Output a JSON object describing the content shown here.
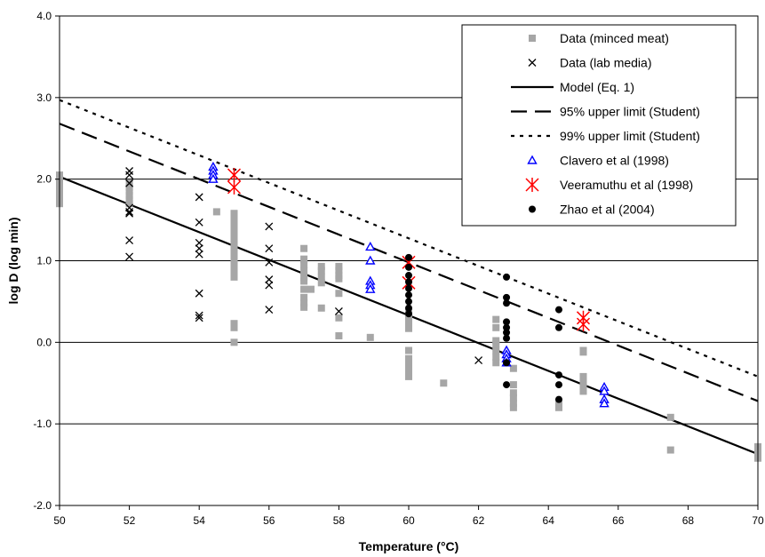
{
  "chart_data": {
    "type": "scatter",
    "xlabel": "Temperature (°C)",
    "ylabel": "log D (log min)",
    "xlim": [
      50,
      70
    ],
    "ylim": [
      -2.0,
      4.0
    ],
    "xticks": [
      "50",
      "52",
      "54",
      "56",
      "58",
      "60",
      "62",
      "64",
      "66",
      "68",
      "70"
    ],
    "yticks": [
      "-2.0",
      "-1.0",
      "0.0",
      "1.0",
      "2.0",
      "3.0",
      "4.0"
    ],
    "grid": "horizontal",
    "legend_position": "top-right",
    "series": [
      {
        "name": "Data (minced meat)",
        "kind": "points",
        "marker": "square",
        "color": "#a6a6a6",
        "points": [
          [
            50,
            2.05
          ],
          [
            50,
            2.0
          ],
          [
            50,
            1.95
          ],
          [
            50,
            1.9
          ],
          [
            50,
            1.85
          ],
          [
            50,
            1.8
          ],
          [
            50,
            1.75
          ],
          [
            50,
            1.7
          ],
          [
            52,
            1.95
          ],
          [
            52,
            1.9
          ],
          [
            52,
            1.85
          ],
          [
            52,
            1.8
          ],
          [
            52,
            1.75
          ],
          [
            52,
            1.7
          ],
          [
            54.5,
            1.6
          ],
          [
            55,
            1.58
          ],
          [
            55,
            1.52
          ],
          [
            55,
            1.45
          ],
          [
            55,
            1.4
          ],
          [
            55,
            1.35
          ],
          [
            55,
            1.3
          ],
          [
            55,
            1.25
          ],
          [
            55,
            1.2
          ],
          [
            55,
            1.15
          ],
          [
            55,
            1.1
          ],
          [
            55,
            1.05
          ],
          [
            55,
            1.0
          ],
          [
            55,
            0.95
          ],
          [
            55,
            0.9
          ],
          [
            55,
            0.85
          ],
          [
            55,
            0.8
          ],
          [
            55,
            0.23
          ],
          [
            55,
            0.18
          ],
          [
            55,
            0.0
          ],
          [
            57,
            1.15
          ],
          [
            57,
            1.02
          ],
          [
            57,
            0.95
          ],
          [
            57,
            0.88
          ],
          [
            57,
            0.8
          ],
          [
            57,
            0.75
          ],
          [
            57,
            0.65
          ],
          [
            57,
            0.55
          ],
          [
            57,
            0.48
          ],
          [
            57,
            0.43
          ],
          [
            57.2,
            0.65
          ],
          [
            57.5,
            0.93
          ],
          [
            57.5,
            0.88
          ],
          [
            57.5,
            0.8
          ],
          [
            57.5,
            0.73
          ],
          [
            57.5,
            0.42
          ],
          [
            58,
            0.93
          ],
          [
            58,
            0.88
          ],
          [
            58,
            0.82
          ],
          [
            58,
            0.78
          ],
          [
            58,
            0.6
          ],
          [
            58,
            0.3
          ],
          [
            58,
            0.08
          ],
          [
            58.9,
            0.06
          ],
          [
            60,
            0.38
          ],
          [
            60,
            0.3
          ],
          [
            60,
            0.22
          ],
          [
            60,
            0.17
          ],
          [
            60,
            -0.1
          ],
          [
            60,
            -0.2
          ],
          [
            60,
            -0.28
          ],
          [
            60,
            -0.35
          ],
          [
            60,
            -0.42
          ],
          [
            61,
            -0.5
          ],
          [
            62.5,
            0.28
          ],
          [
            62.5,
            0.18
          ],
          [
            62.5,
            0.02
          ],
          [
            62.5,
            -0.02
          ],
          [
            62.5,
            -0.1
          ],
          [
            62.5,
            -0.18
          ],
          [
            62.5,
            -0.25
          ],
          [
            63,
            -0.32
          ],
          [
            63,
            -0.52
          ],
          [
            63,
            -0.62
          ],
          [
            63,
            -0.68
          ],
          [
            63,
            -0.75
          ],
          [
            63,
            -0.8
          ],
          [
            64.3,
            -0.75
          ],
          [
            64.3,
            -0.8
          ],
          [
            65,
            -0.12
          ],
          [
            65,
            -0.1
          ],
          [
            65,
            -0.42
          ],
          [
            65,
            -0.48
          ],
          [
            65,
            -0.55
          ],
          [
            65,
            -0.6
          ],
          [
            67.5,
            -0.92
          ],
          [
            67.5,
            -1.32
          ],
          [
            70,
            -1.28
          ],
          [
            70,
            -1.35
          ],
          [
            70,
            -1.42
          ]
        ]
      },
      {
        "name": "Data (lab media)",
        "kind": "points",
        "marker": "x",
        "color": "#000000",
        "points": [
          [
            52,
            2.1
          ],
          [
            52,
            2.05
          ],
          [
            52,
            1.95
          ],
          [
            52,
            1.65
          ],
          [
            52,
            1.6
          ],
          [
            52,
            1.58
          ],
          [
            52,
            1.25
          ],
          [
            52,
            1.05
          ],
          [
            54,
            1.78
          ],
          [
            54,
            1.47
          ],
          [
            54,
            1.22
          ],
          [
            54,
            1.15
          ],
          [
            54,
            1.08
          ],
          [
            54,
            0.6
          ],
          [
            54,
            0.33
          ],
          [
            54,
            0.3
          ],
          [
            56,
            1.42
          ],
          [
            56,
            1.15
          ],
          [
            56,
            0.98
          ],
          [
            56,
            0.77
          ],
          [
            56,
            0.7
          ],
          [
            56,
            0.4
          ],
          [
            58,
            0.38
          ],
          [
            62,
            -0.22
          ]
        ]
      },
      {
        "name": "Model (Eq. 1)",
        "kind": "line",
        "dash": "solid",
        "color": "#000000",
        "points": [
          [
            50,
            2.03
          ],
          [
            70,
            -1.37
          ]
        ]
      },
      {
        "name": "95% upper limit (Student)",
        "kind": "line",
        "dash": "long-dash",
        "color": "#000000",
        "points": [
          [
            50,
            2.68
          ],
          [
            70,
            -0.72
          ]
        ]
      },
      {
        "name": "99% upper limit (Student)",
        "kind": "line",
        "dash": "dotted",
        "color": "#000000",
        "points": [
          [
            50,
            2.97
          ],
          [
            70,
            -0.42
          ]
        ]
      },
      {
        "name": "Clavero et al (1998)",
        "kind": "points",
        "marker": "triangle",
        "color": "#0000ff",
        "points": [
          [
            54.4,
            2.15
          ],
          [
            54.4,
            2.1
          ],
          [
            54.4,
            2.05
          ],
          [
            54.4,
            2.0
          ],
          [
            58.9,
            1.17
          ],
          [
            58.9,
            1.0
          ],
          [
            58.9,
            0.75
          ],
          [
            58.9,
            0.7
          ],
          [
            58.9,
            0.65
          ],
          [
            62.8,
            -0.1
          ],
          [
            62.8,
            -0.15
          ],
          [
            62.8,
            -0.2
          ],
          [
            62.8,
            -0.25
          ],
          [
            65.6,
            -0.55
          ],
          [
            65.6,
            -0.6
          ],
          [
            65.6,
            -0.7
          ],
          [
            65.6,
            -0.75
          ]
        ]
      },
      {
        "name": "Veeramuthu et al (1998)",
        "kind": "points",
        "marker": "asterisk",
        "color": "#ff0000",
        "points": [
          [
            55,
            2.05
          ],
          [
            55,
            1.9
          ],
          [
            60,
            0.98
          ],
          [
            60,
            0.73
          ],
          [
            65,
            0.3
          ],
          [
            65,
            0.22
          ]
        ]
      },
      {
        "name": "Zhao et al (2004)",
        "kind": "points",
        "marker": "circle",
        "color": "#000000",
        "points": [
          [
            60,
            1.04
          ],
          [
            60,
            0.92
          ],
          [
            60,
            0.82
          ],
          [
            60,
            0.74
          ],
          [
            60,
            0.66
          ],
          [
            60,
            0.58
          ],
          [
            60,
            0.5
          ],
          [
            60,
            0.42
          ],
          [
            60,
            0.35
          ],
          [
            62.8,
            0.8
          ],
          [
            62.8,
            0.55
          ],
          [
            62.8,
            0.48
          ],
          [
            62.8,
            0.25
          ],
          [
            62.8,
            0.18
          ],
          [
            62.8,
            0.12
          ],
          [
            62.8,
            0.05
          ],
          [
            62.8,
            -0.25
          ],
          [
            62.8,
            -0.52
          ],
          [
            64.3,
            0.4
          ],
          [
            64.3,
            0.18
          ],
          [
            64.3,
            -0.4
          ],
          [
            64.3,
            -0.52
          ],
          [
            64.3,
            -0.7
          ]
        ]
      }
    ]
  }
}
